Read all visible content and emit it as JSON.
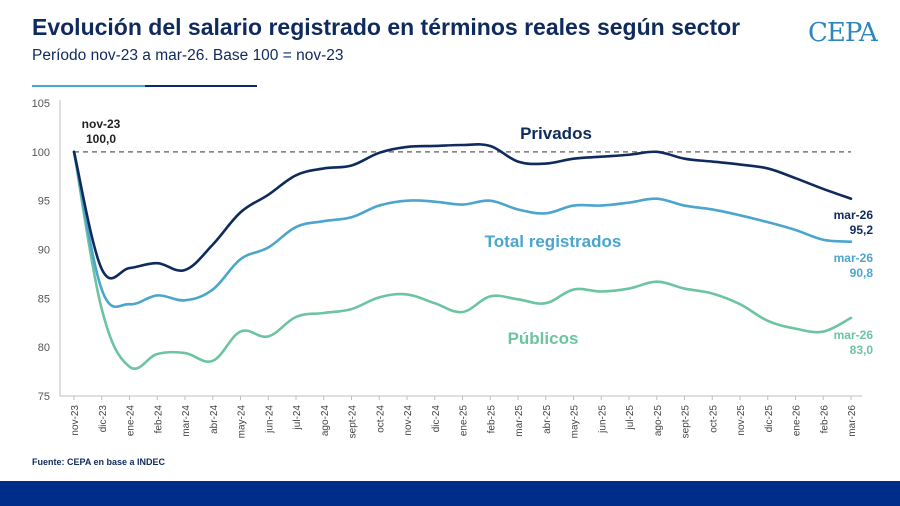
{
  "header": {
    "title": "Evolución del salario registrado en términos reales según sector",
    "subtitle": "Período nov-23 a mar-26. Base 100 = nov-23",
    "logo_text": "CEPA"
  },
  "footer": {
    "source": "Fuente: CEPA en base a INDEC"
  },
  "colors": {
    "privados": "#0f2a5c",
    "total": "#4ba5cc",
    "publicos": "#6cc4a1",
    "baseline": "#777777",
    "footer_bar": "#012d8a"
  },
  "chart_data": {
    "type": "line",
    "x": [
      "nov-23",
      "dic-23",
      "ene-24",
      "feb-24",
      "mar-24",
      "abr-24",
      "may-24",
      "jun-24",
      "jul-24",
      "ago-24",
      "sept-24",
      "oct-24",
      "nov-24",
      "dic-24",
      "ene-25",
      "feb-25",
      "mar-25",
      "abr-25",
      "may-25",
      "jun-25",
      "jul-25",
      "ago-25",
      "sept-25",
      "oct-25",
      "nov-25",
      "dic-25",
      "ene-26",
      "feb-26",
      "mar-26"
    ],
    "ylim": [
      75,
      105
    ],
    "yticks": [
      75,
      80,
      85,
      90,
      95,
      100,
      105
    ],
    "baseline": 100,
    "series": [
      {
        "name": "Privados",
        "key": "privados",
        "values": [
          100.0,
          88.0,
          88.1,
          88.6,
          87.9,
          90.5,
          93.8,
          95.6,
          97.6,
          98.3,
          98.6,
          99.9,
          100.5,
          100.6,
          100.7,
          100.6,
          99.0,
          98.8,
          99.3,
          99.5,
          99.7,
          100.0,
          99.3,
          99.0,
          98.7,
          98.3,
          97.3,
          96.2,
          95.2
        ]
      },
      {
        "name": "Total registrados",
        "key": "total",
        "values": [
          100.0,
          85.9,
          84.4,
          85.3,
          84.8,
          85.9,
          89.0,
          90.2,
          92.3,
          92.9,
          93.3,
          94.5,
          95.0,
          94.9,
          94.6,
          95.0,
          94.1,
          93.7,
          94.5,
          94.5,
          94.8,
          95.2,
          94.5,
          94.1,
          93.5,
          92.8,
          92.0,
          91.0,
          90.8
        ]
      },
      {
        "name": "Públicos",
        "key": "publicos",
        "values": [
          100.0,
          83.9,
          78.0,
          79.3,
          79.4,
          78.6,
          81.6,
          81.1,
          83.1,
          83.5,
          83.9,
          85.1,
          85.4,
          84.5,
          83.6,
          85.2,
          84.9,
          84.5,
          85.9,
          85.7,
          86.0,
          86.7,
          86.0,
          85.5,
          84.4,
          82.7,
          81.9,
          81.6,
          83.0
        ]
      }
    ],
    "annotations": {
      "start": {
        "label": "nov-23",
        "value": "100,0"
      },
      "end": [
        {
          "key": "privados",
          "label": "mar-26",
          "value": "95,2"
        },
        {
          "key": "total",
          "label": "mar-26",
          "value": "90,8"
        },
        {
          "key": "publicos",
          "label": "mar-26",
          "value": "83,0"
        }
      ]
    }
  }
}
